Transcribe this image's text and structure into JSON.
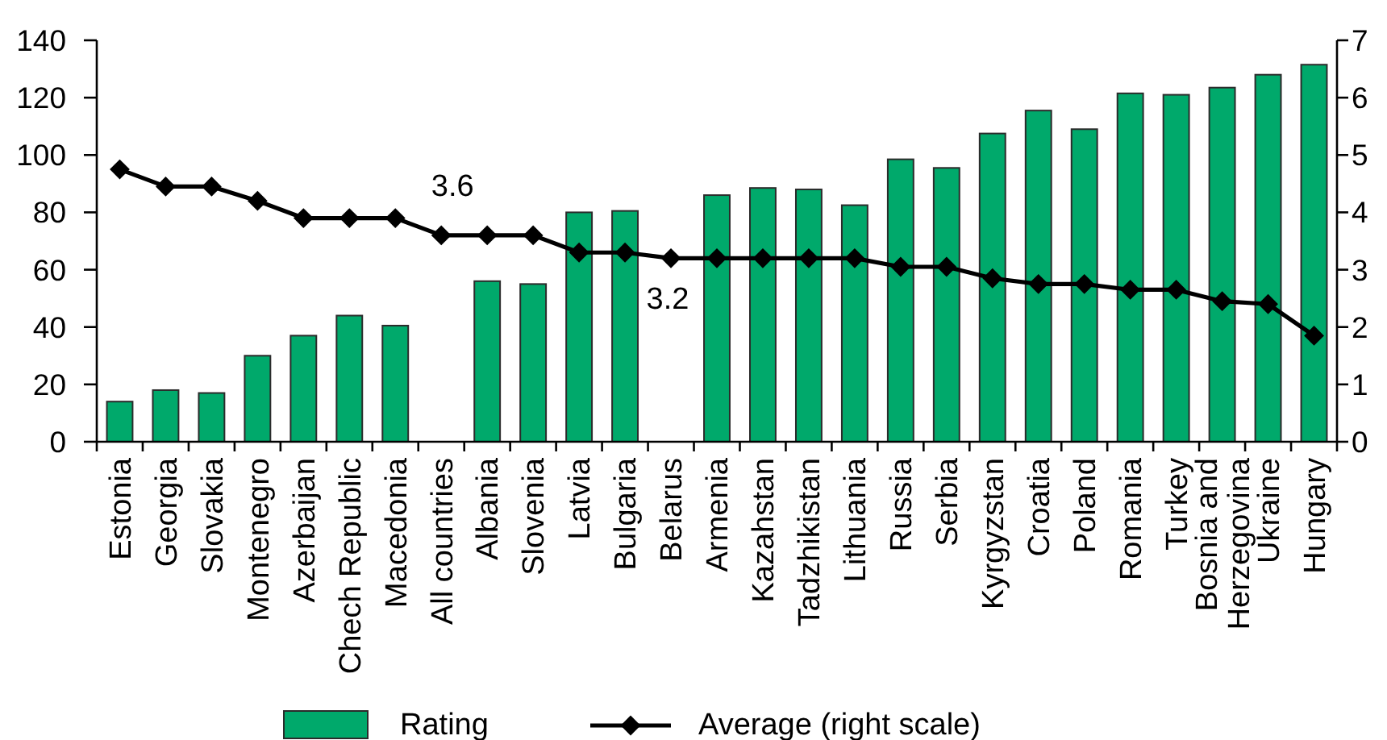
{
  "chart_data": {
    "type": "bar",
    "categories": [
      "Estonia",
      "Georgia",
      "Slovakia",
      "Montenegro",
      "Azerbaijan",
      "Chech Republic",
      "Macedonia",
      "All countries",
      "Albania",
      "Slovenia",
      "Latvia",
      "Bulgaria",
      "Belarus",
      "Armenia",
      "Kazahstan",
      "Tadzhikistan",
      "Lithuania",
      "Russia",
      "Serbia",
      "Kyrgyzstan",
      "Croatia",
      "Poland",
      "Romania",
      "Turkey",
      "Bosnia and Herzegovina",
      "Ukraine",
      "Hungary"
    ],
    "series": [
      {
        "name": "Rating",
        "color": "#00a96b",
        "values": [
          14,
          18,
          17,
          30,
          37,
          44,
          40.5,
          null,
          56,
          55,
          80,
          80.5,
          null,
          86,
          88.5,
          88,
          82.5,
          98.5,
          95.5,
          107.5,
          115.5,
          109,
          121.5,
          121,
          123.5,
          128,
          131.5
        ]
      },
      {
        "name": "Average (right scale)",
        "type": "line",
        "axis": "y2",
        "color": "#000000",
        "values": [
          4.75,
          4.45,
          4.45,
          4.2,
          3.9,
          3.9,
          3.9,
          3.6,
          3.6,
          3.6,
          3.3,
          3.3,
          3.2,
          3.2,
          3.2,
          3.2,
          3.2,
          3.05,
          3.05,
          2.85,
          2.75,
          2.75,
          2.65,
          2.65,
          2.45,
          2.4,
          1.85
        ],
        "value_labels": [
          null,
          null,
          null,
          null,
          null,
          null,
          null,
          "3.6",
          null,
          null,
          null,
          null,
          "3.2",
          null,
          null,
          null,
          null,
          null,
          null,
          null,
          null,
          null,
          null,
          null,
          null,
          null,
          null
        ]
      }
    ],
    "ylim": [
      0,
      140
    ],
    "yticks": [
      0,
      20,
      40,
      60,
      80,
      100,
      120,
      140
    ],
    "y2lim": [
      0,
      7
    ],
    "y2ticks": [
      0,
      1,
      2,
      3,
      4,
      5,
      6,
      7
    ],
    "marker": "diamond",
    "legend": "bottom"
  }
}
